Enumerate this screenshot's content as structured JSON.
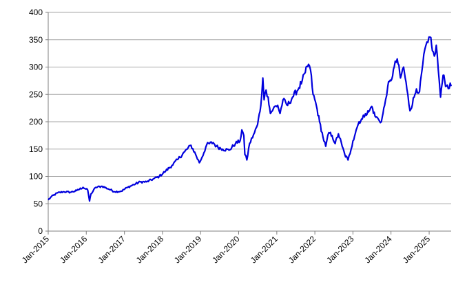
{
  "chart_data": {
    "type": "line",
    "title": "",
    "xlabel": "",
    "ylabel": "",
    "ylim": [
      0,
      400
    ],
    "y_ticks": [
      0,
      50,
      100,
      150,
      200,
      250,
      300,
      350,
      400
    ],
    "x_range": [
      "2015-01-01",
      "2025-07-31"
    ],
    "x_ticks": [
      {
        "date": "2015-01-01",
        "label": "Jan-2015"
      },
      {
        "date": "2016-01-01",
        "label": "Jan-2016"
      },
      {
        "date": "2017-01-01",
        "label": "Jan-2017"
      },
      {
        "date": "2018-01-01",
        "label": "Jan-2018"
      },
      {
        "date": "2019-01-01",
        "label": "Jan-2019"
      },
      {
        "date": "2020-01-01",
        "label": "Jan-2020"
      },
      {
        "date": "2021-01-01",
        "label": "Jan-2021"
      },
      {
        "date": "2022-01-01",
        "label": "Jan-2022"
      },
      {
        "date": "2023-01-01",
        "label": "Jan-2023"
      },
      {
        "date": "2024-01-01",
        "label": "Jan-2024"
      },
      {
        "date": "2025-01-01",
        "label": "Jan-2025"
      }
    ],
    "grid": "horizontal",
    "legend": "none",
    "colors": {
      "series": "#0000dd",
      "grid": "#a6a6a6",
      "axis": "#7f7f7f"
    },
    "series": [
      {
        "x": [
          "2015-01-01",
          "2015-02-01",
          "2015-04-01",
          "2015-06-01",
          "2015-08-01",
          "2015-10-01",
          "2015-12-01",
          "2016-01-15",
          "2016-02-01",
          "2016-02-15",
          "2016-04-01",
          "2016-06-01",
          "2016-08-01",
          "2016-10-01",
          "2016-12-01",
          "2017-02-01",
          "2017-04-01",
          "2017-06-01",
          "2017-08-01",
          "2017-10-01",
          "2017-12-01",
          "2018-02-01",
          "2018-04-01",
          "2018-06-01",
          "2018-08-01",
          "2018-10-01",
          "2018-11-15",
          "2018-12-20",
          "2019-01-15",
          "2019-03-01",
          "2019-05-01",
          "2019-06-01",
          "2019-08-01",
          "2019-10-01",
          "2019-12-01",
          "2020-01-15",
          "2020-02-01",
          "2020-02-20",
          "2020-03-01",
          "2020-03-20",
          "2020-04-15",
          "2020-06-01",
          "2020-07-01",
          "2020-08-01",
          "2020-08-20",
          "2020-09-01",
          "2020-09-20",
          "2020-10-10",
          "2020-11-01",
          "2020-12-01",
          "2021-01-10",
          "2021-02-01",
          "2021-03-01",
          "2021-04-15",
          "2021-06-01",
          "2021-08-01",
          "2021-09-01",
          "2021-10-01",
          "2021-11-01",
          "2021-11-20",
          "2021-12-15",
          "2022-01-15",
          "2022-02-15",
          "2022-03-20",
          "2022-04-15",
          "2022-05-15",
          "2022-06-15",
          "2022-07-15",
          "2022-08-15",
          "2022-09-20",
          "2022-10-15",
          "2022-11-15",
          "2022-12-15",
          "2023-01-01",
          "2023-02-01",
          "2023-03-01",
          "2023-04-01",
          "2023-05-01",
          "2023-06-01",
          "2023-07-01",
          "2023-08-01",
          "2023-09-01",
          "2023-10-01",
          "2023-11-01",
          "2023-12-01",
          "2024-01-01",
          "2024-02-01",
          "2024-03-01",
          "2024-04-01",
          "2024-05-01",
          "2024-06-01",
          "2024-07-01",
          "2024-08-10",
          "2024-09-01",
          "2024-10-01",
          "2024-11-01",
          "2024-12-01",
          "2024-12-20",
          "2025-01-10",
          "2025-02-01",
          "2025-02-20",
          "2025-03-10",
          "2025-04-08",
          "2025-04-20",
          "2025-05-15",
          "2025-06-15",
          "2025-07-31"
        ],
        "y": [
          57,
          63,
          70,
          72,
          71,
          74,
          80,
          75,
          55,
          68,
          80,
          82,
          77,
          72,
          73,
          80,
          85,
          90,
          90,
          95,
          100,
          110,
          120,
          132,
          145,
          157,
          140,
          125,
          135,
          158,
          162,
          155,
          150,
          148,
          160,
          165,
          185,
          175,
          140,
          130,
          160,
          180,
          195,
          230,
          280,
          240,
          258,
          245,
          215,
          225,
          230,
          215,
          240,
          230,
          245,
          262,
          275,
          290,
          305,
          295,
          250,
          230,
          200,
          172,
          155,
          180,
          175,
          160,
          178,
          155,
          140,
          130,
          150,
          165,
          185,
          200,
          205,
          215,
          218,
          228,
          210,
          205,
          200,
          230,
          265,
          275,
          300,
          315,
          280,
          300,
          260,
          220,
          245,
          260,
          255,
          305,
          340,
          345,
          355,
          330,
          320,
          340,
          275,
          245,
          285,
          265,
          265
        ]
      }
    ]
  }
}
